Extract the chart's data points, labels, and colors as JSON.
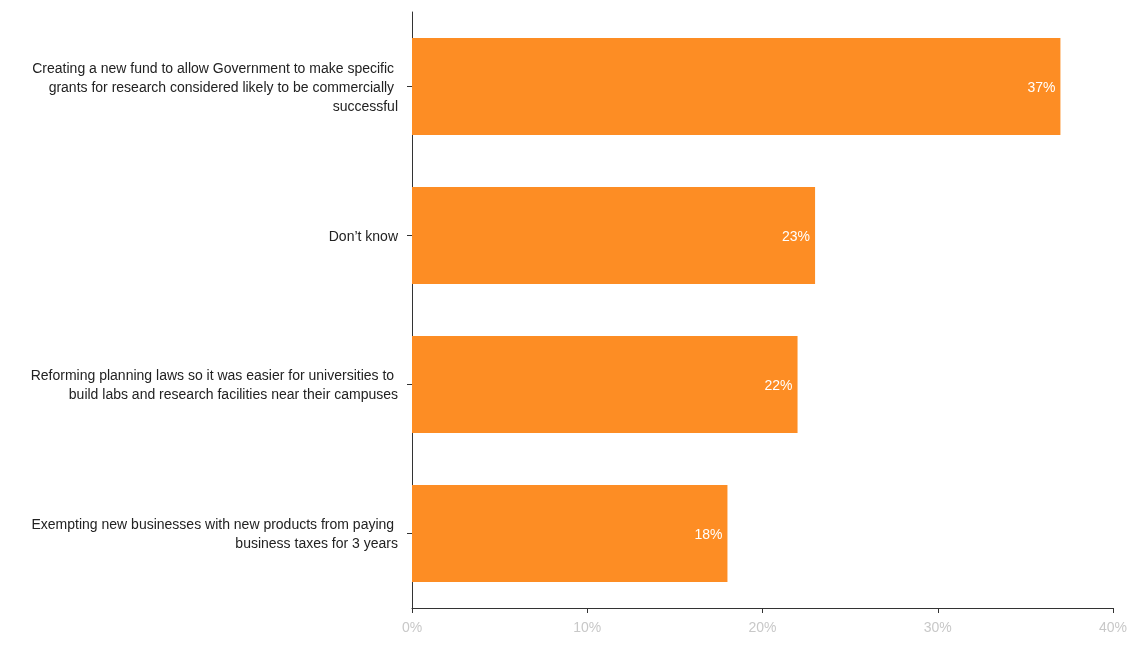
{
  "chart_data": {
    "type": "bar",
    "orientation": "horizontal",
    "categories": [
      "Creating a new fund to allow Government to make specific grants for research considered likely to be commercially successful",
      "Don’t know",
      "Reforming planning laws so it was easier for universities to build labs and research facilities near their campuses",
      "Exempting new businesses with new products from paying business taxes for 3 years"
    ],
    "values": [
      37,
      23,
      22,
      18
    ],
    "value_labels": [
      "37%",
      "23%",
      "22%",
      "18%"
    ],
    "color": "#fd8d24",
    "xlim": [
      0,
      40
    ],
    "xticks": [
      {
        "value": 0,
        "label": "0%"
      },
      {
        "value": 10,
        "label": "10%"
      },
      {
        "value": 20,
        "label": "20%"
      },
      {
        "value": 30,
        "label": "30%"
      },
      {
        "value": 40,
        "label": "40%"
      }
    ],
    "grid": false
  }
}
